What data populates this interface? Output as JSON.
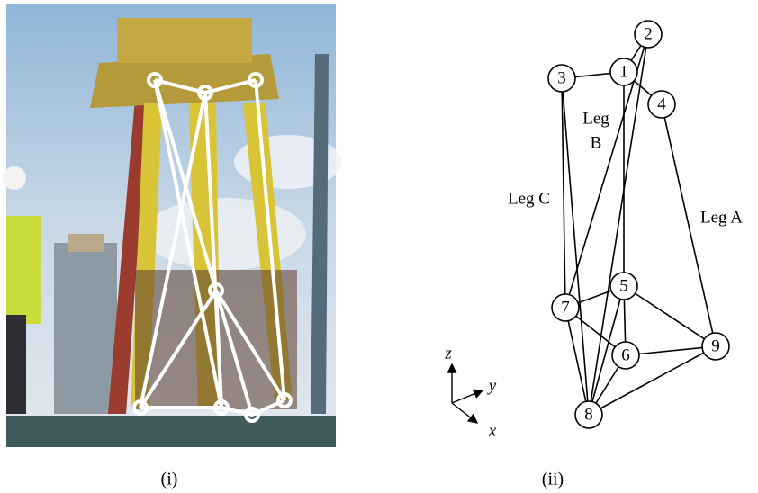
{
  "photo_panel": {
    "caption": "(i)"
  },
  "diagram_panel": {
    "caption": "(ii)",
    "nodes": [
      "1",
      "2",
      "3",
      "4",
      "5",
      "6",
      "7",
      "8",
      "9"
    ],
    "legs": {
      "a": "Leg A",
      "b": [
        "Leg",
        "B"
      ],
      "c": "Leg C"
    },
    "axes": {
      "z": "z",
      "y": "y",
      "x": "x"
    }
  }
}
